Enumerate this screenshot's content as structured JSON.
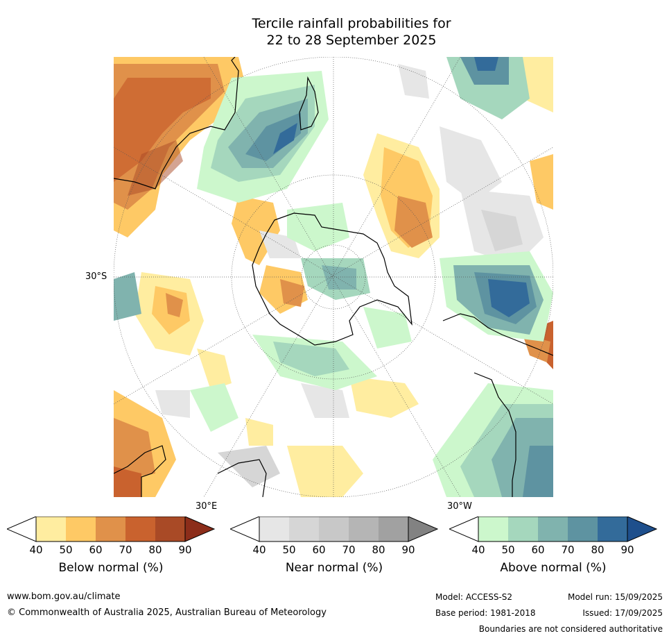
{
  "title": {
    "line1": "Tercile rainfall probabilities for",
    "line2": "22 to 28 September 2025"
  },
  "map": {
    "projection_labels": {
      "lat": "30°S",
      "lon_east": "30°E",
      "lon_west": "30°W"
    },
    "colors": {
      "ocean_white": "#ffffff",
      "below": [
        "#ffeda0",
        "#fec965",
        "#e0914a",
        "#c9622e",
        "#a94a26",
        "#8c2d1a"
      ],
      "near": [
        "#e6e6e6",
        "#d6d6d6",
        "#c8c8c8",
        "#b5b5b5",
        "#a1a1a1",
        "#828282"
      ],
      "above": [
        "#ccf7cc",
        "#a5d7bd",
        "#80b3ae",
        "#5e93a1",
        "#336b9a",
        "#1e4f8c"
      ]
    }
  },
  "colorbars": [
    {
      "name": "below",
      "title": "Below normal (%)",
      "ticks": [
        "40",
        "50",
        "60",
        "70",
        "80",
        "90"
      ],
      "colors": [
        "#ffeda0",
        "#fec965",
        "#e0914a",
        "#c9622e",
        "#a94a26",
        "#8c2d1a"
      ]
    },
    {
      "name": "near",
      "title": "Near normal (%)",
      "ticks": [
        "40",
        "50",
        "60",
        "70",
        "80",
        "90"
      ],
      "colors": [
        "#e6e6e6",
        "#d6d6d6",
        "#c8c8c8",
        "#b5b5b5",
        "#a1a1a1",
        "#828282"
      ]
    },
    {
      "name": "above",
      "title": "Above normal (%)",
      "ticks": [
        "40",
        "50",
        "60",
        "70",
        "80",
        "90"
      ],
      "colors": [
        "#ccf7cc",
        "#a5d7bd",
        "#80b3ae",
        "#5e93a1",
        "#336b9a",
        "#1e4f8c"
      ]
    }
  ],
  "footer": {
    "website": "www.bom.gov.au/climate",
    "copyright": "© Commonwealth of Australia 2025, Australian Bureau of Meteorology",
    "model": "Model: ACCESS-S2",
    "base_period": "Base period: 1981-2018",
    "model_run": "Model run: 15/09/2025",
    "issued": "Issued: 17/09/2025",
    "disclaimer": "Boundaries are not considered authoritative"
  }
}
